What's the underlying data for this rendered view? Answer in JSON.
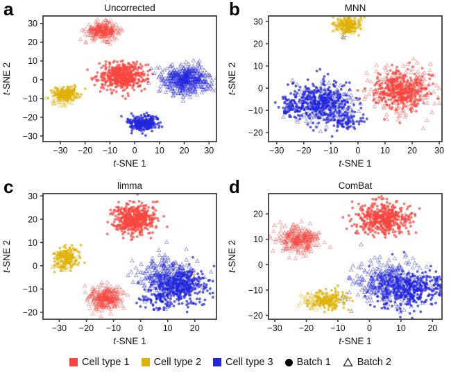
{
  "legend": {
    "items": [
      {
        "label": "Cell type 1",
        "marker": "square",
        "color": "#f8453e"
      },
      {
        "label": "Cell type 2",
        "marker": "square",
        "color": "#e0b206"
      },
      {
        "label": "Cell type 3",
        "marker": "square",
        "color": "#2125dd"
      },
      {
        "label": "Batch 1",
        "marker": "filled-circle",
        "color": "#000000"
      },
      {
        "label": "Batch 2",
        "marker": "open-triangle",
        "color": "#000000"
      }
    ]
  },
  "chart_data": [
    {
      "type": "scatter",
      "panel_label": "a",
      "title": "Uncorrected",
      "xlabel": "t-SNE 1",
      "ylabel": "t-SNE 2",
      "xlim": [
        -37,
        33
      ],
      "ylim": [
        -33,
        34
      ],
      "xticks": [
        -30,
        -20,
        -10,
        0,
        10,
        20,
        30
      ],
      "yticks": [
        -30,
        -20,
        -10,
        0,
        10,
        20,
        30
      ],
      "clusters": [
        {
          "cell_type": "Cell type 1",
          "batch": "Batch 2",
          "color": "#f8453e",
          "marker": "triangle",
          "cx": -13,
          "cy": 26,
          "sx": 3.4,
          "sy": 2.2,
          "n": 240
        },
        {
          "cell_type": "Cell type 1",
          "batch": "Batch 1",
          "color": "#f8453e",
          "marker": "circle",
          "cx": -5,
          "cy": 2,
          "sx": 4.8,
          "sy": 3.6,
          "n": 470
        },
        {
          "cell_type": "Cell type 3",
          "batch": "Batch 2",
          "color": "#2125dd",
          "marker": "triangle",
          "cx": 21,
          "cy": 0,
          "sx": 4.8,
          "sy": 3.8,
          "n": 470
        },
        {
          "cell_type": "Cell type 3",
          "batch": "Batch 1",
          "color": "#2125dd",
          "marker": "circle",
          "cx": 3.5,
          "cy": -23,
          "sx": 3.3,
          "sy": 2.1,
          "n": 240
        },
        {
          "cell_type": "Cell type 2",
          "batch": "Batch 1",
          "color": "#e0b206",
          "marker": "circle",
          "cx": -27.5,
          "cy": -7.5,
          "sx": 2.4,
          "sy": 1.9,
          "n": 150
        },
        {
          "cell_type": "Cell type 2",
          "batch": "Batch 2",
          "color": "#e0b206",
          "marker": "triangle",
          "cx": -29.5,
          "cy": -9.5,
          "sx": 2.6,
          "sy": 2.1,
          "n": 60
        }
      ]
    },
    {
      "type": "scatter",
      "panel_label": "b",
      "title": "MNN",
      "xlabel": "t-SNE 1",
      "ylabel": "t-SNE 2",
      "xlim": [
        -33,
        31
      ],
      "ylim": [
        -24,
        32.5
      ],
      "xticks": [
        -30,
        -20,
        -10,
        0,
        10,
        20,
        30
      ],
      "yticks": [
        -20,
        -10,
        0,
        10,
        20,
        30
      ],
      "clusters": [
        {
          "cell_type": "Cell type 2",
          "batch": "Batch 1",
          "color": "#e0b206",
          "marker": "circle",
          "cx": -3.5,
          "cy": 28.5,
          "sx": 2.3,
          "sy": 2.0,
          "n": 130
        },
        {
          "cell_type": "Cell type 2",
          "batch": "Batch 2",
          "color": "#e0b206",
          "marker": "triangle",
          "cx": -4.5,
          "cy": 28,
          "sx": 2.3,
          "sy": 2.0,
          "n": 60
        },
        {
          "cell_type": "outlier",
          "batch": "Batch 2",
          "color": "#b3a68b",
          "marker": "triangle",
          "cx": -5,
          "cy": 23.5,
          "sx": 0.7,
          "sy": 0.7,
          "n": 4
        },
        {
          "cell_type": "Cell type 3",
          "batch": "Batch 1",
          "color": "#2125dd",
          "marker": "circle",
          "cx": -13,
          "cy": -6,
          "sx": 5.5,
          "sy": 4.4,
          "n": 330
        },
        {
          "cell_type": "Cell type 3",
          "batch": "Batch 1",
          "color": "#2125dd",
          "marker": "circle",
          "cx": -23,
          "cy": -8,
          "sx": 3.4,
          "sy": 2.4,
          "n": 80
        },
        {
          "cell_type": "Cell type 3",
          "batch": "Batch 1",
          "color": "#2125dd",
          "marker": "circle",
          "cx": -5,
          "cy": -15,
          "sx": 3.5,
          "sy": 2.5,
          "n": 80
        },
        {
          "cell_type": "Cell type 3",
          "batch": "Batch 2",
          "color": "#2125dd",
          "marker": "triangle",
          "cx": -12,
          "cy": -7,
          "sx": 5.8,
          "sy": 4.8,
          "n": 170
        },
        {
          "cell_type": "Cell type 1",
          "batch": "Batch 1",
          "color": "#f8453e",
          "marker": "circle",
          "cx": 16,
          "cy": -1,
          "sx": 4.8,
          "sy": 4.4,
          "n": 340
        },
        {
          "cell_type": "Cell type 1",
          "batch": "Batch 2",
          "color": "#f8453e",
          "marker": "triangle",
          "cx": 16.5,
          "cy": -0.5,
          "sx": 6.2,
          "sy": 5.4,
          "n": 230
        }
      ]
    },
    {
      "type": "scatter",
      "panel_label": "c",
      "title": "limma",
      "xlabel": "t-SNE 1",
      "ylabel": "t-SNE 2",
      "xlim": [
        -36,
        28
      ],
      "ylim": [
        -23,
        31
      ],
      "xticks": [
        -30,
        -20,
        -10,
        0,
        10,
        20
      ],
      "yticks": [
        -20,
        -10,
        0,
        10,
        20,
        30
      ],
      "clusters": [
        {
          "cell_type": "Cell type 1",
          "batch": "Batch 1",
          "color": "#f8453e",
          "marker": "circle",
          "cx": -2,
          "cy": 20,
          "sx": 4.0,
          "sy": 3.4,
          "n": 470
        },
        {
          "cell_type": "Cell type 1",
          "batch": "Batch 2",
          "color": "#f8453e",
          "marker": "triangle",
          "cx": -13,
          "cy": -14,
          "sx": 3.1,
          "sy": 2.5,
          "n": 270
        },
        {
          "cell_type": "Cell type 2",
          "batch": "Batch 1",
          "color": "#e0b206",
          "marker": "circle",
          "cx": -27,
          "cy": 3.5,
          "sx": 2.3,
          "sy": 2.5,
          "n": 140
        },
        {
          "cell_type": "Cell type 2",
          "batch": "Batch 2",
          "color": "#e0b206",
          "marker": "triangle",
          "cx": -28.5,
          "cy": 2,
          "sx": 2.2,
          "sy": 2.3,
          "n": 45
        },
        {
          "cell_type": "Cell type 2",
          "batch": "Batch 1",
          "color": "#e0b206",
          "marker": "circle",
          "cx": 10,
          "cy": -3,
          "sx": 9,
          "sy": 2.5,
          "n": 3
        },
        {
          "cell_type": "Cell type 3",
          "batch": "Batch 2",
          "color": "#2125dd",
          "marker": "triangle",
          "cx": 10,
          "cy": -5,
          "sx": 5.4,
          "sy": 4.4,
          "n": 330
        },
        {
          "cell_type": "Cell type 3",
          "batch": "Batch 1",
          "color": "#2125dd",
          "marker": "circle",
          "cx": 16,
          "cy": -9,
          "sx": 4.8,
          "sy": 4.0,
          "n": 290
        },
        {
          "cell_type": "Cell type 3",
          "batch": "Batch 1",
          "color": "#2125dd",
          "marker": "circle",
          "cx": 7,
          "cy": -14,
          "sx": 3.6,
          "sy": 2.6,
          "n": 90
        }
      ]
    },
    {
      "type": "scatter",
      "panel_label": "d",
      "title": "ComBat",
      "xlabel": "t-SNE 1",
      "ylabel": "t-SNE 2",
      "xlim": [
        -32,
        23
      ],
      "ylim": [
        -21.5,
        28
      ],
      "xticks": [
        -30,
        -20,
        -10,
        0,
        10,
        20
      ],
      "yticks": [
        -20,
        -10,
        0,
        10,
        20
      ],
      "clusters": [
        {
          "cell_type": "Cell type 1",
          "batch": "Batch 1",
          "color": "#f8453e",
          "marker": "circle",
          "cx": 4,
          "cy": 18,
          "sx": 4.4,
          "sy": 3.1,
          "n": 450
        },
        {
          "cell_type": "Cell type 1",
          "batch": "Batch 2",
          "color": "#f8453e",
          "marker": "triangle",
          "cx": 9,
          "cy": 16,
          "sx": 2.0,
          "sy": 2.0,
          "n": 12
        },
        {
          "cell_type": "Cell type 1",
          "batch": "Batch 2",
          "color": "#f8453e",
          "marker": "triangle",
          "cx": -22,
          "cy": 10,
          "sx": 3.1,
          "sy": 2.5,
          "n": 270
        },
        {
          "cell_type": "Cell type 2",
          "batch": "Batch 1",
          "color": "#e0b206",
          "marker": "circle",
          "cx": -13,
          "cy": -14,
          "sx": 2.7,
          "sy": 1.8,
          "n": 150
        },
        {
          "cell_type": "Cell type 2",
          "batch": "Batch 2",
          "color": "#e0b206",
          "marker": "triangle",
          "cx": -17.5,
          "cy": -14.5,
          "sx": 2.3,
          "sy": 1.7,
          "n": 55
        },
        {
          "cell_type": "outlier",
          "batch": "Batch 2",
          "color": "#b3a68b",
          "marker": "triangle",
          "cx": -8,
          "cy": -13.5,
          "sx": 0.9,
          "sy": 0.7,
          "n": 4
        },
        {
          "cell_type": "Cell type 3",
          "batch": "Batch 2",
          "color": "#2125dd",
          "marker": "triangle",
          "cx": 6,
          "cy": -7,
          "sx": 5.4,
          "sy": 4.4,
          "n": 330
        },
        {
          "cell_type": "Cell type 3",
          "batch": "Batch 1",
          "color": "#2125dd",
          "marker": "circle",
          "cx": 11,
          "cy": -10,
          "sx": 4.8,
          "sy": 3.8,
          "n": 280
        },
        {
          "cell_type": "Cell type 3",
          "batch": "Batch 1",
          "color": "#2125dd",
          "marker": "circle",
          "cx": 18,
          "cy": -8,
          "sx": 2.8,
          "sy": 2.8,
          "n": 80
        }
      ]
    }
  ]
}
